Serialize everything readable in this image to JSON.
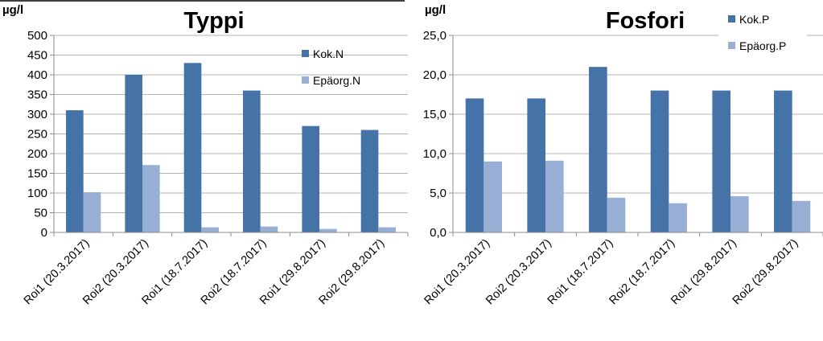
{
  "colors": {
    "primary": "#4572A7",
    "secondary": "#98AFD5",
    "grid": "#B3B3B3",
    "axis": "#8C8C8C"
  },
  "chart_data": [
    {
      "type": "bar",
      "title": "Typpi",
      "unit": "µg/l",
      "categories": [
        "Roi1 (20.3.2017)",
        "Roi2 (20.3.2017)",
        "Roi1 (18.7.2017)",
        "Roi2 (18.7.2017)",
        "Roi1 (29.8.2017)",
        "Roi2 (29.8.2017)"
      ],
      "series": [
        {
          "name": "Kok.N",
          "values": [
            310,
            400,
            430,
            360,
            270,
            260
          ]
        },
        {
          "name": "Epäorg.N",
          "values": [
            102,
            171,
            13,
            15,
            9,
            13
          ]
        }
      ],
      "ylim": [
        0,
        500
      ],
      "yticks": [
        "0",
        "50",
        "100",
        "150",
        "200",
        "250",
        "300",
        "350",
        "400",
        "450",
        "500"
      ],
      "grid": true,
      "legend_position": "right-inside-top"
    },
    {
      "type": "bar",
      "title": "Fosfori",
      "unit": "µg/l",
      "categories": [
        "Roi1 (20.3.2017)",
        "Roi2 (20.3.2017)",
        "Roi1 (18.7.2017)",
        "Roi2 (18.7.2017)",
        "Roi1 (29.8.2017)",
        "Roi2 (29.8.2017)"
      ],
      "series": [
        {
          "name": "Kok.P",
          "values": [
            17.0,
            17.0,
            21.0,
            18.0,
            18.0,
            18.0
          ]
        },
        {
          "name": "Epäorg.P",
          "values": [
            9.0,
            9.1,
            4.4,
            3.7,
            4.6,
            4.0
          ]
        }
      ],
      "ylim": [
        0,
        25
      ],
      "yticks": [
        "0,0",
        "5,0",
        "10,0",
        "15,0",
        "20,0",
        "25,0"
      ],
      "grid": true,
      "legend_position": "top-right"
    }
  ]
}
